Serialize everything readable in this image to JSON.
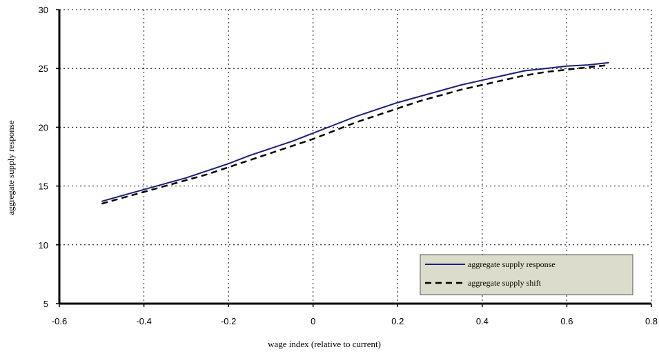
{
  "chart_data": {
    "type": "line",
    "title": "",
    "xlabel": "wage index (relative to current)",
    "ylabel": "aggregate supply response",
    "xlim": [
      -0.6,
      0.8
    ],
    "ylim": [
      5,
      30
    ],
    "xticks": [
      "-0.6",
      "-0.4",
      "-0.2",
      "0",
      "0.2",
      "0.4",
      "0.6",
      "0.8"
    ],
    "yticks": [
      "5",
      "10",
      "15",
      "20",
      "25",
      "30"
    ],
    "grid": true,
    "legend_position": "bottom-right",
    "series": [
      {
        "name": "aggregate supply response",
        "color": "#1c1c7a",
        "style": "solid",
        "x": [
          -0.5,
          -0.45,
          -0.4,
          -0.35,
          -0.3,
          -0.25,
          -0.2,
          -0.15,
          -0.1,
          -0.05,
          0,
          0.05,
          0.1,
          0.15,
          0.2,
          0.25,
          0.3,
          0.35,
          0.4,
          0.45,
          0.5,
          0.55,
          0.6,
          0.65,
          0.7
        ],
        "y": [
          13.7,
          14.2,
          14.7,
          15.2,
          15.7,
          16.3,
          16.9,
          17.6,
          18.2,
          18.8,
          19.5,
          20.2,
          20.9,
          21.5,
          22.1,
          22.6,
          23.1,
          23.6,
          24.0,
          24.4,
          24.8,
          25.0,
          25.2,
          25.3,
          25.5
        ]
      },
      {
        "name": "aggregate supply shift",
        "color": "#000000",
        "style": "dashed",
        "x": [
          -0.5,
          -0.45,
          -0.4,
          -0.35,
          -0.3,
          -0.25,
          -0.2,
          -0.15,
          -0.1,
          -0.05,
          0,
          0.05,
          0.1,
          0.15,
          0.2,
          0.25,
          0.3,
          0.35,
          0.4,
          0.45,
          0.5,
          0.55,
          0.6,
          0.65,
          0.7
        ],
        "y": [
          13.5,
          14.0,
          14.5,
          15.0,
          15.5,
          16.0,
          16.6,
          17.2,
          17.8,
          18.4,
          19.0,
          19.7,
          20.4,
          21.0,
          21.6,
          22.2,
          22.7,
          23.2,
          23.6,
          24.0,
          24.4,
          24.7,
          24.9,
          25.1,
          25.3
        ]
      }
    ]
  }
}
